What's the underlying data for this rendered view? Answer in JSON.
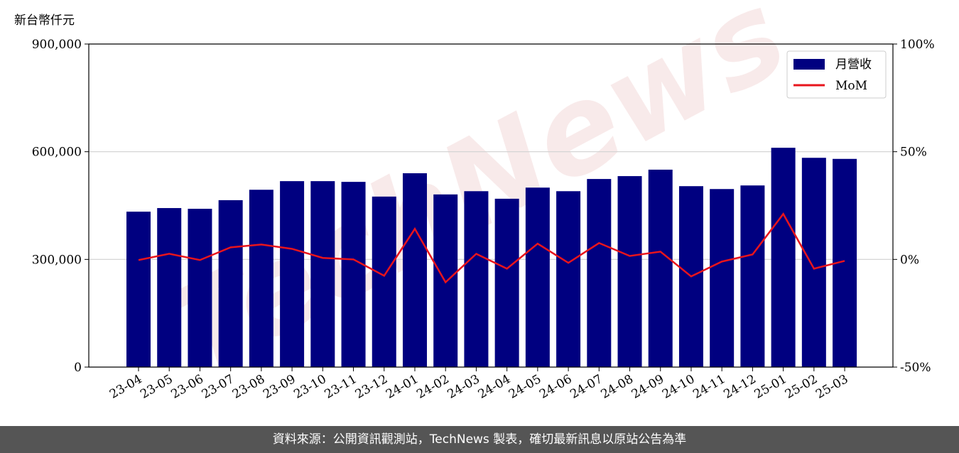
{
  "chart_data": {
    "type": "bar_line",
    "y_label": "新台幣仟元",
    "watermark": "TechNews",
    "categories": [
      "23-04",
      "23-05",
      "23-06",
      "23-07",
      "23-08",
      "23-09",
      "23-10",
      "23-11",
      "23-12",
      "24-01",
      "24-02",
      "24-03",
      "24-04",
      "24-05",
      "24-06",
      "24-07",
      "24-08",
      "24-09",
      "24-10",
      "24-11",
      "24-12",
      "25-01",
      "25-02",
      "25-03"
    ],
    "series": [
      {
        "name": "月營收",
        "color": "#000080",
        "type": "bar",
        "values": [
          433000,
          443000,
          441000,
          465000,
          494000,
          518000,
          518000,
          516000,
          475000,
          540000,
          481000,
          490000,
          469000,
          500000,
          490000,
          524000,
          532000,
          550000,
          504000,
          496000,
          506000,
          611000,
          583000,
          580000
        ]
      },
      {
        "name": "MoM",
        "color": "#e8141c",
        "type": "line",
        "axis": "y2",
        "values": [
          -0.3,
          2.6,
          -0.3,
          5.6,
          6.9,
          4.9,
          0.7,
          0,
          -7.6,
          14.2,
          -10.6,
          2.6,
          -4.3,
          7.3,
          -1.6,
          7.6,
          1.6,
          3.6,
          -7.9,
          -1,
          2.3,
          21.1,
          -4.3,
          -0.7
        ]
      }
    ],
    "ylim": [
      0,
      900000
    ],
    "yticks": [
      0,
      {
        "value": 300000,
        "label": "300,000"
      },
      {
        "value": 600000,
        "label": "600,000"
      },
      {
        "value": 900000,
        "label": "900,000"
      }
    ],
    "y2lim": [
      -50,
      100
    ],
    "y2ticks": [
      {
        "value": -50,
        "label": "-50%"
      },
      {
        "value": 0,
        "label": "0%"
      },
      {
        "value": 50,
        "label": "50%"
      },
      {
        "value": 100,
        "label": "100%"
      }
    ],
    "grid": true,
    "legend": "upper right",
    "footer": "資料來源：公開資訊觀測站，TechNews 製表，確切最新訊息以原站公告為準"
  }
}
